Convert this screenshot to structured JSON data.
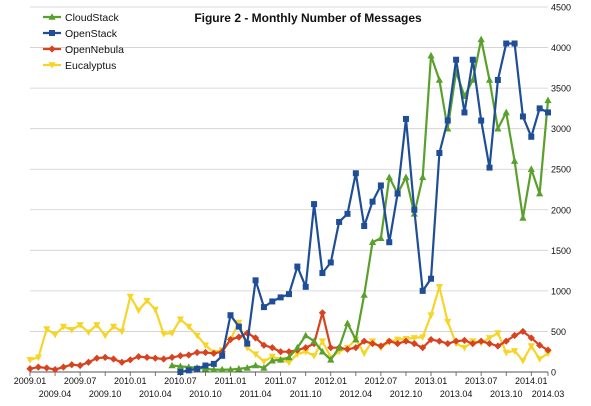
{
  "chart_data": {
    "type": "line",
    "title": "Figure 2 - Monthly Number of Messages",
    "xlabel": "",
    "ylabel": "",
    "ylim": [
      0,
      4500
    ],
    "y_ticks": [
      0,
      500,
      1000,
      1500,
      2000,
      2500,
      3000,
      3500,
      4000,
      4500
    ],
    "grid": "horizontal",
    "legend_position": "top-left",
    "x_ticks_upper": [
      "2009.01",
      "2009.07",
      "2010.01",
      "2010.07",
      "2011.01",
      "2011.07",
      "2012.01",
      "2012.07",
      "2013.01",
      "2013.07",
      "2014.01"
    ],
    "x_ticks_lower": [
      "2009.04",
      "2009.10",
      "2010.04",
      "2010.10",
      "2011.04",
      "2011.10",
      "2012.04",
      "2012.10",
      "2013.04",
      "2013.10",
      "2014.03"
    ],
    "x_start": "2009.01",
    "x_end": "2014.03",
    "series": [
      {
        "name": "CloudStack",
        "color": "#5aa02c",
        "marker": "triangle",
        "x": [
          "2010.06",
          "2010.07",
          "2010.08",
          "2010.09",
          "2010.10",
          "2010.11",
          "2010.12",
          "2011.01",
          "2011.02",
          "2011.03",
          "2011.04",
          "2011.05",
          "2011.06",
          "2011.07",
          "2011.08",
          "2011.09",
          "2011.10",
          "2011.11",
          "2011.12",
          "2012.01",
          "2012.02",
          "2012.03",
          "2012.04",
          "2012.05",
          "2012.06",
          "2012.07",
          "2012.08",
          "2012.09",
          "2012.10",
          "2012.11",
          "2012.12",
          "2013.01",
          "2013.02",
          "2013.03",
          "2013.04",
          "2013.05",
          "2013.06",
          "2013.07",
          "2013.08",
          "2013.09",
          "2013.10",
          "2013.11",
          "2013.12",
          "2014.01",
          "2014.02",
          "2014.03"
        ],
        "values": [
          80,
          70,
          60,
          50,
          40,
          30,
          30,
          30,
          40,
          50,
          80,
          50,
          140,
          150,
          180,
          300,
          450,
          380,
          250,
          150,
          300,
          600,
          400,
          950,
          1600,
          1650,
          2400,
          2200,
          2400,
          1950,
          2400,
          3900,
          3600,
          3000,
          3700,
          3400,
          3600,
          4100,
          3600,
          3000,
          3200,
          2600,
          1900,
          2500,
          2200,
          3350
        ]
      },
      {
        "name": "OpenStack",
        "color": "#1f4e96",
        "marker": "square",
        "x": [
          "2010.07",
          "2010.08",
          "2010.09",
          "2010.10",
          "2010.11",
          "2010.12",
          "2011.01",
          "2011.02",
          "2011.03",
          "2011.04",
          "2011.05",
          "2011.06",
          "2011.07",
          "2011.08",
          "2011.09",
          "2011.10",
          "2011.11",
          "2011.12",
          "2012.01",
          "2012.02",
          "2012.03",
          "2012.04",
          "2012.05",
          "2012.06",
          "2012.07",
          "2012.08",
          "2012.09",
          "2012.10",
          "2012.11",
          "2012.12",
          "2013.01",
          "2013.02",
          "2013.03",
          "2013.04",
          "2013.05",
          "2013.06",
          "2013.07",
          "2013.08",
          "2013.09",
          "2013.10",
          "2013.11",
          "2013.12",
          "2014.01",
          "2014.02",
          "2014.03"
        ],
        "values": [
          0,
          20,
          40,
          80,
          100,
          200,
          700,
          560,
          350,
          1130,
          800,
          870,
          920,
          960,
          1300,
          1050,
          2070,
          1220,
          1350,
          1850,
          1950,
          2450,
          1800,
          2100,
          2300,
          1600,
          2200,
          3120,
          2000,
          1000,
          1150,
          2700,
          3100,
          3850,
          3200,
          3850,
          3100,
          2520,
          3600,
          4050,
          4050,
          3150,
          2900,
          3250,
          3200
        ]
      },
      {
        "name": "OpenNebula",
        "color": "#d8421e",
        "marker": "diamond",
        "x": [
          "2009.01",
          "2009.02",
          "2009.03",
          "2009.04",
          "2009.05",
          "2009.06",
          "2009.07",
          "2009.08",
          "2009.09",
          "2009.10",
          "2009.11",
          "2009.12",
          "2010.01",
          "2010.02",
          "2010.03",
          "2010.04",
          "2010.05",
          "2010.06",
          "2010.07",
          "2010.08",
          "2010.09",
          "2010.10",
          "2010.11",
          "2010.12",
          "2011.01",
          "2011.02",
          "2011.03",
          "2011.04",
          "2011.05",
          "2011.06",
          "2011.07",
          "2011.08",
          "2011.09",
          "2011.10",
          "2011.11",
          "2011.12",
          "2012.01",
          "2012.02",
          "2012.03",
          "2012.04",
          "2012.05",
          "2012.06",
          "2012.07",
          "2012.08",
          "2012.09",
          "2012.10",
          "2012.11",
          "2012.12",
          "2013.01",
          "2013.02",
          "2013.03",
          "2013.04",
          "2013.05",
          "2013.06",
          "2013.07",
          "2013.08",
          "2013.09",
          "2013.10",
          "2013.11",
          "2013.12",
          "2014.01",
          "2014.02",
          "2014.03"
        ],
        "values": [
          40,
          60,
          50,
          30,
          60,
          90,
          80,
          120,
          170,
          180,
          160,
          120,
          150,
          190,
          180,
          170,
          160,
          180,
          200,
          210,
          240,
          240,
          230,
          250,
          400,
          430,
          480,
          420,
          330,
          300,
          250,
          250,
          270,
          300,
          350,
          730,
          300,
          300,
          280,
          300,
          380,
          350,
          320,
          380,
          350,
          380,
          350,
          300,
          400,
          380,
          350,
          380,
          390,
          350,
          380,
          350,
          320,
          380,
          450,
          500,
          420,
          330,
          270
        ]
      },
      {
        "name": "Eucalyptus",
        "color": "#f6d52b",
        "marker": "inverted-triangle",
        "x": [
          "2009.01",
          "2009.02",
          "2009.03",
          "2009.04",
          "2009.05",
          "2009.06",
          "2009.07",
          "2009.08",
          "2009.09",
          "2009.10",
          "2009.11",
          "2009.12",
          "2010.01",
          "2010.02",
          "2010.03",
          "2010.04",
          "2010.05",
          "2010.06",
          "2010.07",
          "2010.08",
          "2010.09",
          "2010.10",
          "2010.11",
          "2010.12",
          "2011.01",
          "2011.02",
          "2011.03",
          "2011.04",
          "2011.05",
          "2011.06",
          "2011.07",
          "2011.08",
          "2011.09",
          "2011.10",
          "2011.11",
          "2011.12",
          "2012.01",
          "2012.02",
          "2012.03",
          "2012.04",
          "2012.05",
          "2012.06",
          "2012.07",
          "2012.08",
          "2012.09",
          "2012.10",
          "2012.11",
          "2012.12",
          "2013.01",
          "2013.02",
          "2013.03",
          "2013.04",
          "2013.05",
          "2013.06",
          "2013.07",
          "2013.08",
          "2013.09",
          "2013.10",
          "2013.11",
          "2013.12",
          "2014.01",
          "2014.02",
          "2014.03"
        ],
        "values": [
          150,
          180,
          530,
          460,
          560,
          520,
          580,
          490,
          580,
          450,
          560,
          500,
          930,
          760,
          880,
          770,
          470,
          480,
          650,
          560,
          450,
          330,
          240,
          270,
          400,
          610,
          300,
          220,
          130,
          190,
          150,
          120,
          220,
          250,
          200,
          380,
          180,
          250,
          300,
          400,
          230,
          380,
          300,
          370,
          400,
          410,
          420,
          430,
          700,
          1050,
          620,
          350,
          300,
          380,
          360,
          420,
          480,
          240,
          260,
          140,
          320,
          160,
          230
        ]
      }
    ]
  }
}
